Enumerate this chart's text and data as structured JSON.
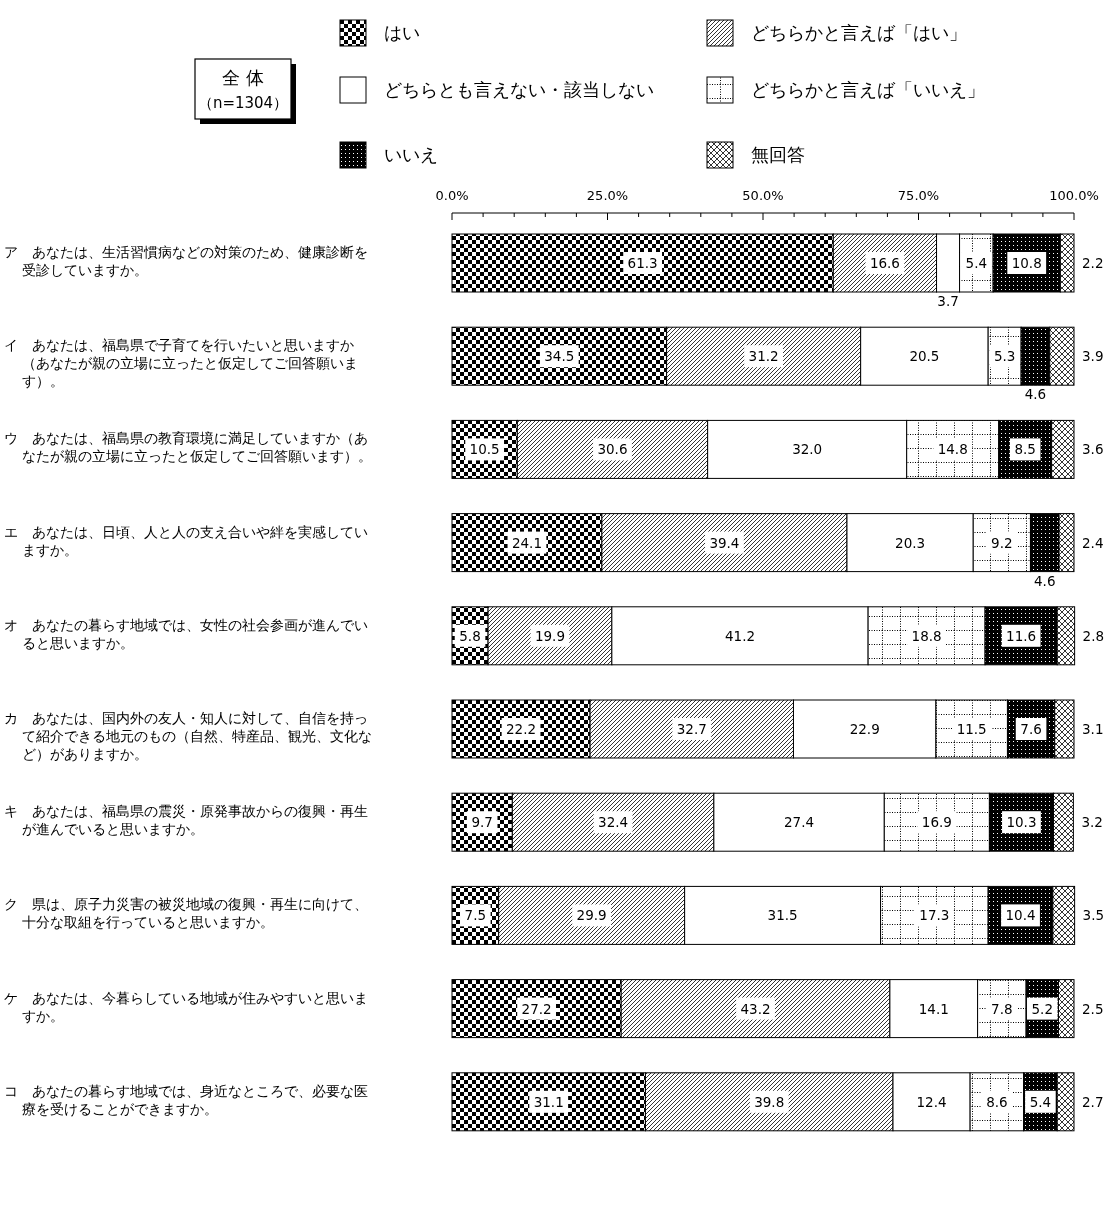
{
  "chart_data": {
    "type": "bar",
    "orientation": "horizontal",
    "stacked": true,
    "legend": "top",
    "categories": [
      "ア　あなたは、生活習慣病などの対策のため、健康診断を受診していますか。",
      "イ　あなたは、福島県で子育てを行いたいと思いますか（あなたが親の立場に立ったと仮定してご回答願います）。",
      "ウ　あなたは、福島県の教育環境に満足していますか（あなたが親の立場に立ったと仮定してご回答願います）。",
      "エ　あなたは、日頃、人と人の支え合いや絆を実感していますか。",
      "オ　あなたの暮らす地域では、女性の社会参画が進んでいると思いますか。",
      "カ　あなたは、国内外の友人・知人に対して、自信を持って紹介できる地元のもの（自然、特産品、観光、文化など）がありますか。",
      "キ　あなたは、福島県の震災・原発事故からの復興・再生が進んでいると思いますか。",
      "ク　県は、原子力災害の被災地域の復興・再生に向けて、十分な取組を行っていると思いますか。",
      "ケ　あなたは、今暮らしている地域が住みやすいと思いますか。",
      "コ　あなたの暮らす地域では、身近なところで、必要な医療を受けることができますか。"
    ],
    "series": [
      {
        "name": "はい",
        "color": "#000000",
        "values": [
          61.3,
          34.5,
          10.5,
          24.1,
          5.8,
          22.2,
          9.7,
          7.5,
          27.2,
          31.1
        ],
        "value_labels": [
          "61.3",
          "34.5",
          "10.5",
          "24.1",
          "5.8",
          "22.2",
          "9.7",
          "7.5",
          "27.2",
          "31.1"
        ]
      },
      {
        "name": "どちらかと言えば「はい」",
        "color": "#000000",
        "values": [
          16.6,
          31.2,
          30.6,
          39.4,
          19.9,
          32.7,
          32.4,
          29.9,
          43.2,
          39.8
        ],
        "value_labels": [
          "16.6",
          "31.2",
          "30.6",
          "39.4",
          "19.9",
          "32.7",
          "32.4",
          "29.9",
          "43.2",
          "39.8"
        ]
      },
      {
        "name": "どちらとも言えない・該当しない",
        "color": "#000000",
        "values": [
          3.7,
          20.5,
          32.0,
          20.3,
          41.2,
          22.9,
          27.4,
          31.5,
          14.1,
          12.4
        ],
        "value_labels": [
          "3.7",
          "20.5",
          "32.0",
          "20.3",
          "41.2",
          "22.9",
          "27.4",
          "31.5",
          "14.1",
          "12.4"
        ]
      },
      {
        "name": "どちらかと言えば「いいえ」",
        "color": "#000000",
        "values": [
          5.4,
          5.3,
          14.8,
          9.2,
          18.8,
          11.5,
          16.9,
          17.3,
          7.8,
          8.6
        ],
        "value_labels": [
          "5.4",
          "5.3",
          "14.8",
          "9.2",
          "18.8",
          "11.5",
          "16.9",
          "17.3",
          "7.8",
          "8.6"
        ]
      },
      {
        "name": "いいえ",
        "color": "#000000",
        "values": [
          10.8,
          4.6,
          8.5,
          4.6,
          11.6,
          7.6,
          10.3,
          10.4,
          5.2,
          5.4
        ],
        "value_labels": [
          "10.8",
          "4.6",
          "8.5",
          "4.6",
          "11.6",
          "7.6",
          "10.3",
          "10.4",
          "5.2",
          "5.4"
        ]
      },
      {
        "name": "無回答",
        "color": "#000000",
        "values": [
          2.2,
          3.9,
          3.6,
          2.4,
          2.8,
          3.1,
          3.2,
          3.5,
          2.5,
          2.7
        ],
        "value_labels": [
          "2.2",
          "3.9",
          "3.6",
          "2.4",
          "2.8",
          "3.1",
          "3.2",
          "3.5",
          "2.5",
          "2.7"
        ]
      }
    ],
    "xlim": [
      0,
      100
    ],
    "xticks": [
      {
        "value": 0,
        "label": "0.0%"
      },
      {
        "value": 25,
        "label": "25.0%"
      },
      {
        "value": 50,
        "label": "50.0%"
      },
      {
        "value": 75,
        "label": "75.0%"
      },
      {
        "value": 100,
        "label": "100.0%"
      }
    ],
    "annotations": [
      "全 体",
      "（n=1304）"
    ]
  }
}
